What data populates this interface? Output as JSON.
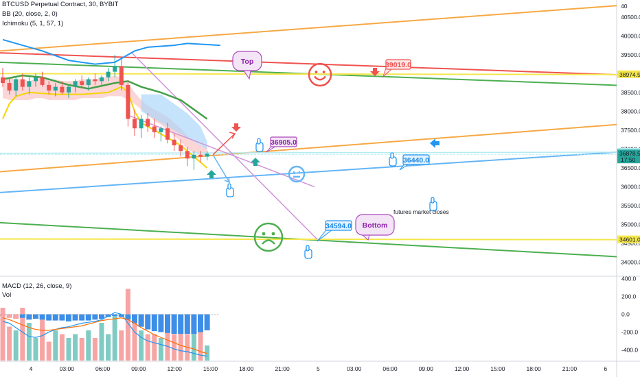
{
  "legend": {
    "symbol": "BTCUSD Perpetual Contract, 30, BYBIT",
    "bb": "BB (20, close, 2, 0)",
    "ichimoku": "Ichimoku (5, 1, 57, 1)",
    "macd": "MACD (12, 26, close, 9)",
    "vol": "Vol"
  },
  "colors": {
    "up": "#26a69a",
    "down": "#ef5350",
    "orange": "#f7a844",
    "green": "#4caf50",
    "blue": "#2196f3",
    "red": "#ef5350",
    "yellow": "#f5e64a",
    "violet": "#ce93d8",
    "lightblue": "#64b5f6"
  },
  "price_axis": {
    "ticks": [
      "40500.0",
      "40000.0",
      "39500.0",
      "39000.0",
      "38500.0",
      "38000.0",
      "37500.0",
      "37000.0",
      "36500.0",
      "36000.0",
      "35500.0",
      "35000.0",
      "34500.0",
      "34000.0"
    ],
    "tick_values": [
      40500,
      40000,
      39500,
      39000,
      38500,
      38000,
      37500,
      37000,
      36500,
      36000,
      35500,
      35000,
      34500,
      34000
    ],
    "range": [
      33650,
      40950
    ],
    "top_label": "40",
    "badges": [
      {
        "text": "38974.5",
        "value": 38974.5,
        "bg": "#f5e64a",
        "fg": "#131722"
      },
      {
        "text": "36919.0",
        "value": 36919,
        "bg": "#b2ebf2",
        "fg": "#131722"
      },
      {
        "text": "36878.5",
        "value": 36878.5,
        "bg": "#26a69a",
        "fg": "#ffffff",
        "sub": "17:50"
      },
      {
        "text": "34601.0",
        "value": 34601,
        "bg": "#f5e64a",
        "fg": "#131722"
      }
    ]
  },
  "macd_axis": {
    "ticks": [
      "400.0",
      "200.0",
      "0.0",
      "-200.0",
      "-400.0"
    ],
    "tick_values": [
      400,
      200,
      0,
      -200,
      -400
    ],
    "range": [
      -520,
      420
    ]
  },
  "time_axis": {
    "labels": [
      "4",
      "03:00",
      "06:00",
      "09:00",
      "12:00",
      "15:00",
      "18:00",
      "21:00",
      "5",
      "03:00",
      "06:00",
      "09:00",
      "12:00",
      "15:00",
      "18:00",
      "21:00",
      "6"
    ]
  },
  "callouts": {
    "top": "Top",
    "bottom": "Bottom",
    "p39019": "39019.0",
    "p36905": "36905.0",
    "p36440": "36440.0",
    "p34594": "34594.0",
    "futures": "futures market closes"
  },
  "chart_data": {
    "type": "candlestick",
    "title": "BTCUSD Perpetual Contract, 30, BYBIT",
    "x": [
      "4 00:00",
      "4 00:30",
      "4 01:00",
      "4 01:30",
      "4 02:00",
      "4 02:30",
      "4 03:00",
      "4 03:30",
      "4 04:00",
      "4 04:30",
      "4 05:00",
      "4 05:30",
      "4 06:00",
      "4 06:30",
      "4 07:00",
      "4 07:30",
      "4 08:00",
      "4 08:30",
      "4 09:00",
      "4 09:30",
      "4 10:00",
      "4 10:30",
      "4 11:00",
      "4 11:30",
      "4 12:00",
      "4 12:30",
      "4 13:00",
      "4 13:30",
      "4 14:00",
      "4 14:30",
      "4 15:00",
      "4 15:30"
    ],
    "candles": [
      [
        38900,
        39150,
        38650,
        38750
      ],
      [
        38750,
        38900,
        38450,
        38550
      ],
      [
        38550,
        38900,
        38400,
        38850
      ],
      [
        38850,
        39000,
        38550,
        38650
      ],
      [
        38650,
        38900,
        38450,
        38800
      ],
      [
        38800,
        39000,
        38650,
        38900
      ],
      [
        38900,
        39050,
        38650,
        38700
      ],
      [
        38700,
        38800,
        38450,
        38550
      ],
      [
        38550,
        38750,
        38400,
        38650
      ],
      [
        38650,
        38800,
        38450,
        38500
      ],
      [
        38500,
        38700,
        38350,
        38650
      ],
      [
        38650,
        38850,
        38500,
        38800
      ],
      [
        38800,
        38950,
        38600,
        38700
      ],
      [
        38700,
        38900,
        38550,
        38850
      ],
      [
        38850,
        39000,
        38700,
        38800
      ],
      [
        38800,
        38950,
        38650,
        38900
      ],
      [
        38900,
        39150,
        38800,
        39050
      ],
      [
        39050,
        39500,
        38900,
        39200
      ],
      [
        39200,
        39400,
        38550,
        38700
      ],
      [
        38700,
        38800,
        37600,
        37800
      ],
      [
        37800,
        38050,
        37350,
        37550
      ],
      [
        37550,
        37900,
        37300,
        37800
      ],
      [
        37800,
        37950,
        37450,
        37600
      ],
      [
        37600,
        37800,
        37300,
        37450
      ],
      [
        37450,
        37600,
        37200,
        37550
      ],
      [
        37550,
        37700,
        37150,
        37250
      ],
      [
        37250,
        37400,
        36950,
        37100
      ],
      [
        37100,
        37250,
        36800,
        36950
      ],
      [
        36950,
        37050,
        36550,
        36750
      ],
      [
        36750,
        36950,
        36450,
        36850
      ],
      [
        36850,
        36950,
        36650,
        36800
      ],
      [
        36800,
        36950,
        36700,
        36878.5
      ]
    ],
    "macd_histogram": [
      -20,
      -40,
      -50,
      -40,
      -60,
      -50,
      -60,
      -70,
      -70,
      -70,
      -80,
      -70,
      -70,
      -70,
      -60,
      -50,
      -30,
      -20,
      -30,
      -60,
      -100,
      -140,
      -170,
      -190,
      -200,
      -210,
      -220,
      -220,
      -220,
      -220,
      -200,
      -180
    ],
    "volume": [
      70,
      45,
      40,
      70,
      50,
      30,
      55,
      25,
      40,
      35,
      30,
      35,
      30,
      40,
      30,
      50,
      35,
      60,
      40,
      95,
      60,
      40,
      35,
      35,
      30,
      40,
      35,
      40,
      35,
      45,
      40,
      20
    ],
    "price_range": [
      33650,
      40950
    ],
    "macd_range": [
      -520,
      420
    ]
  }
}
